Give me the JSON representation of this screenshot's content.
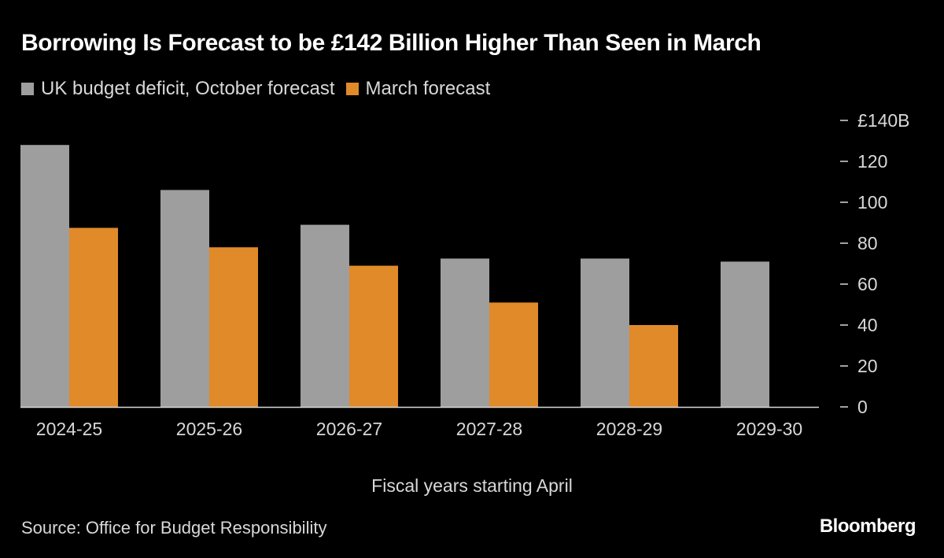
{
  "chart_data": {
    "type": "bar",
    "title": "Borrowing Is Forecast to be £142 Billion Higher Than Seen in March",
    "xlabel": "Fiscal years starting April",
    "ylabel": "",
    "categories": [
      "2024-25",
      "2025-26",
      "2026-27",
      "2027-28",
      "2028-29",
      "2029-30"
    ],
    "series": [
      {
        "name": "UK budget deficit, October forecast",
        "color": "#9e9e9e",
        "values": [
          128,
          106,
          89,
          72.5,
          72.5,
          71
        ]
      },
      {
        "name": "March forecast",
        "color": "#e08a2a",
        "values": [
          87.5,
          78,
          69,
          51,
          40,
          null
        ]
      }
    ],
    "ylim": [
      0,
      140
    ],
    "yticks": [
      0,
      20,
      40,
      60,
      80,
      100,
      120,
      140
    ],
    "ytick_labels": [
      "0",
      "20",
      "40",
      "60",
      "80",
      "100",
      "120",
      "£140B"
    ],
    "grid": false,
    "legend_position": "top-left",
    "y_axis_side": "right"
  },
  "source": "Source: Office for Budget Responsibility",
  "brand": "Bloomberg"
}
